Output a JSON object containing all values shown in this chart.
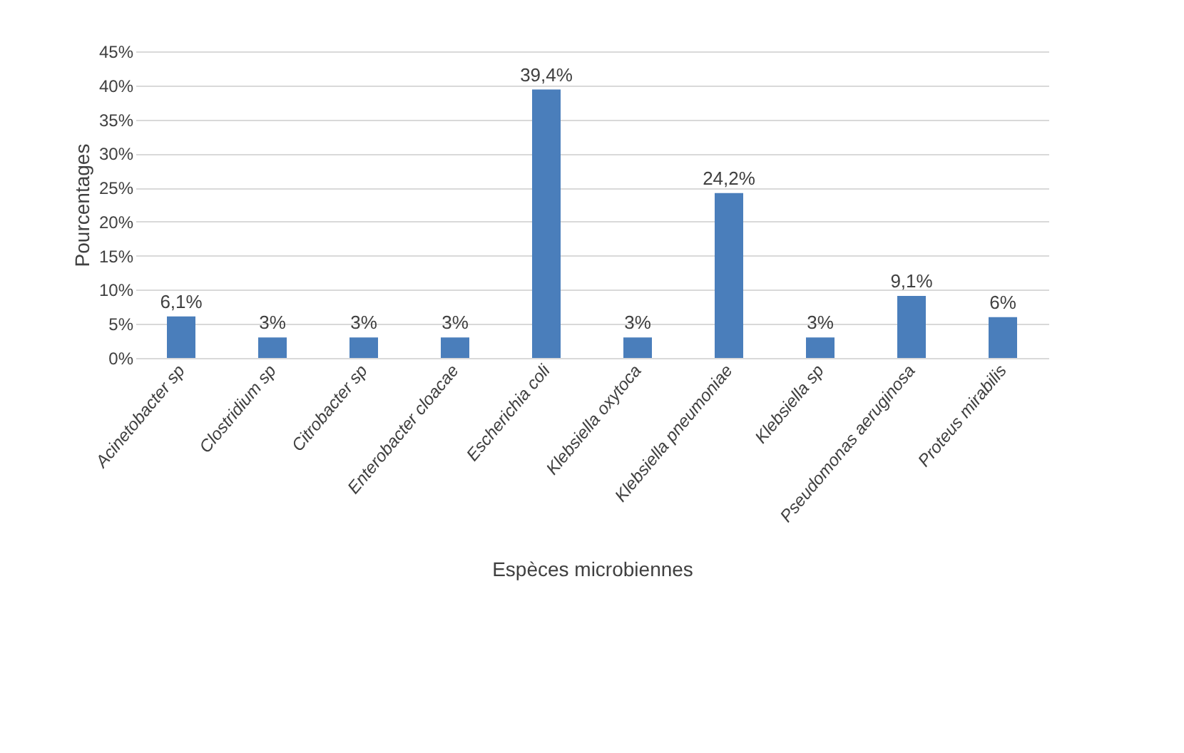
{
  "chart_data": {
    "type": "bar",
    "categories": [
      "Acinetobacter sp",
      "Clostridium sp",
      "Citrobacter sp",
      "Enterobacter cloacae",
      "Escherichia coli",
      "Klebsiella oxytoca",
      "Klebsiella pneumoniae",
      "Klebsiella sp",
      "Pseudomonas aeruginosa",
      "Proteus mirabilis"
    ],
    "values": [
      6.1,
      3,
      3,
      3,
      39.4,
      3,
      24.2,
      3,
      9.1,
      6
    ],
    "value_labels": [
      "6,1%",
      "3%",
      "3%",
      "3%",
      "39,4%",
      "3%",
      "24,2%",
      "3%",
      "9,1%",
      "6%"
    ],
    "color": "#4a7ebb",
    "xlabel": "Espèces microbiennes",
    "ylabel": "Pourcentages",
    "ylim": [
      0,
      45
    ],
    "yticks": [
      {
        "value": 0,
        "label": "0%"
      },
      {
        "value": 5,
        "label": "5%"
      },
      {
        "value": 10,
        "label": "10%"
      },
      {
        "value": 15,
        "label": "15%"
      },
      {
        "value": 20,
        "label": "20%"
      },
      {
        "value": 25,
        "label": "25%"
      },
      {
        "value": 30,
        "label": "30%"
      },
      {
        "value": 35,
        "label": "35%"
      },
      {
        "value": 40,
        "label": "40%"
      },
      {
        "value": 45,
        "label": "45%"
      }
    ],
    "grid": "y"
  }
}
